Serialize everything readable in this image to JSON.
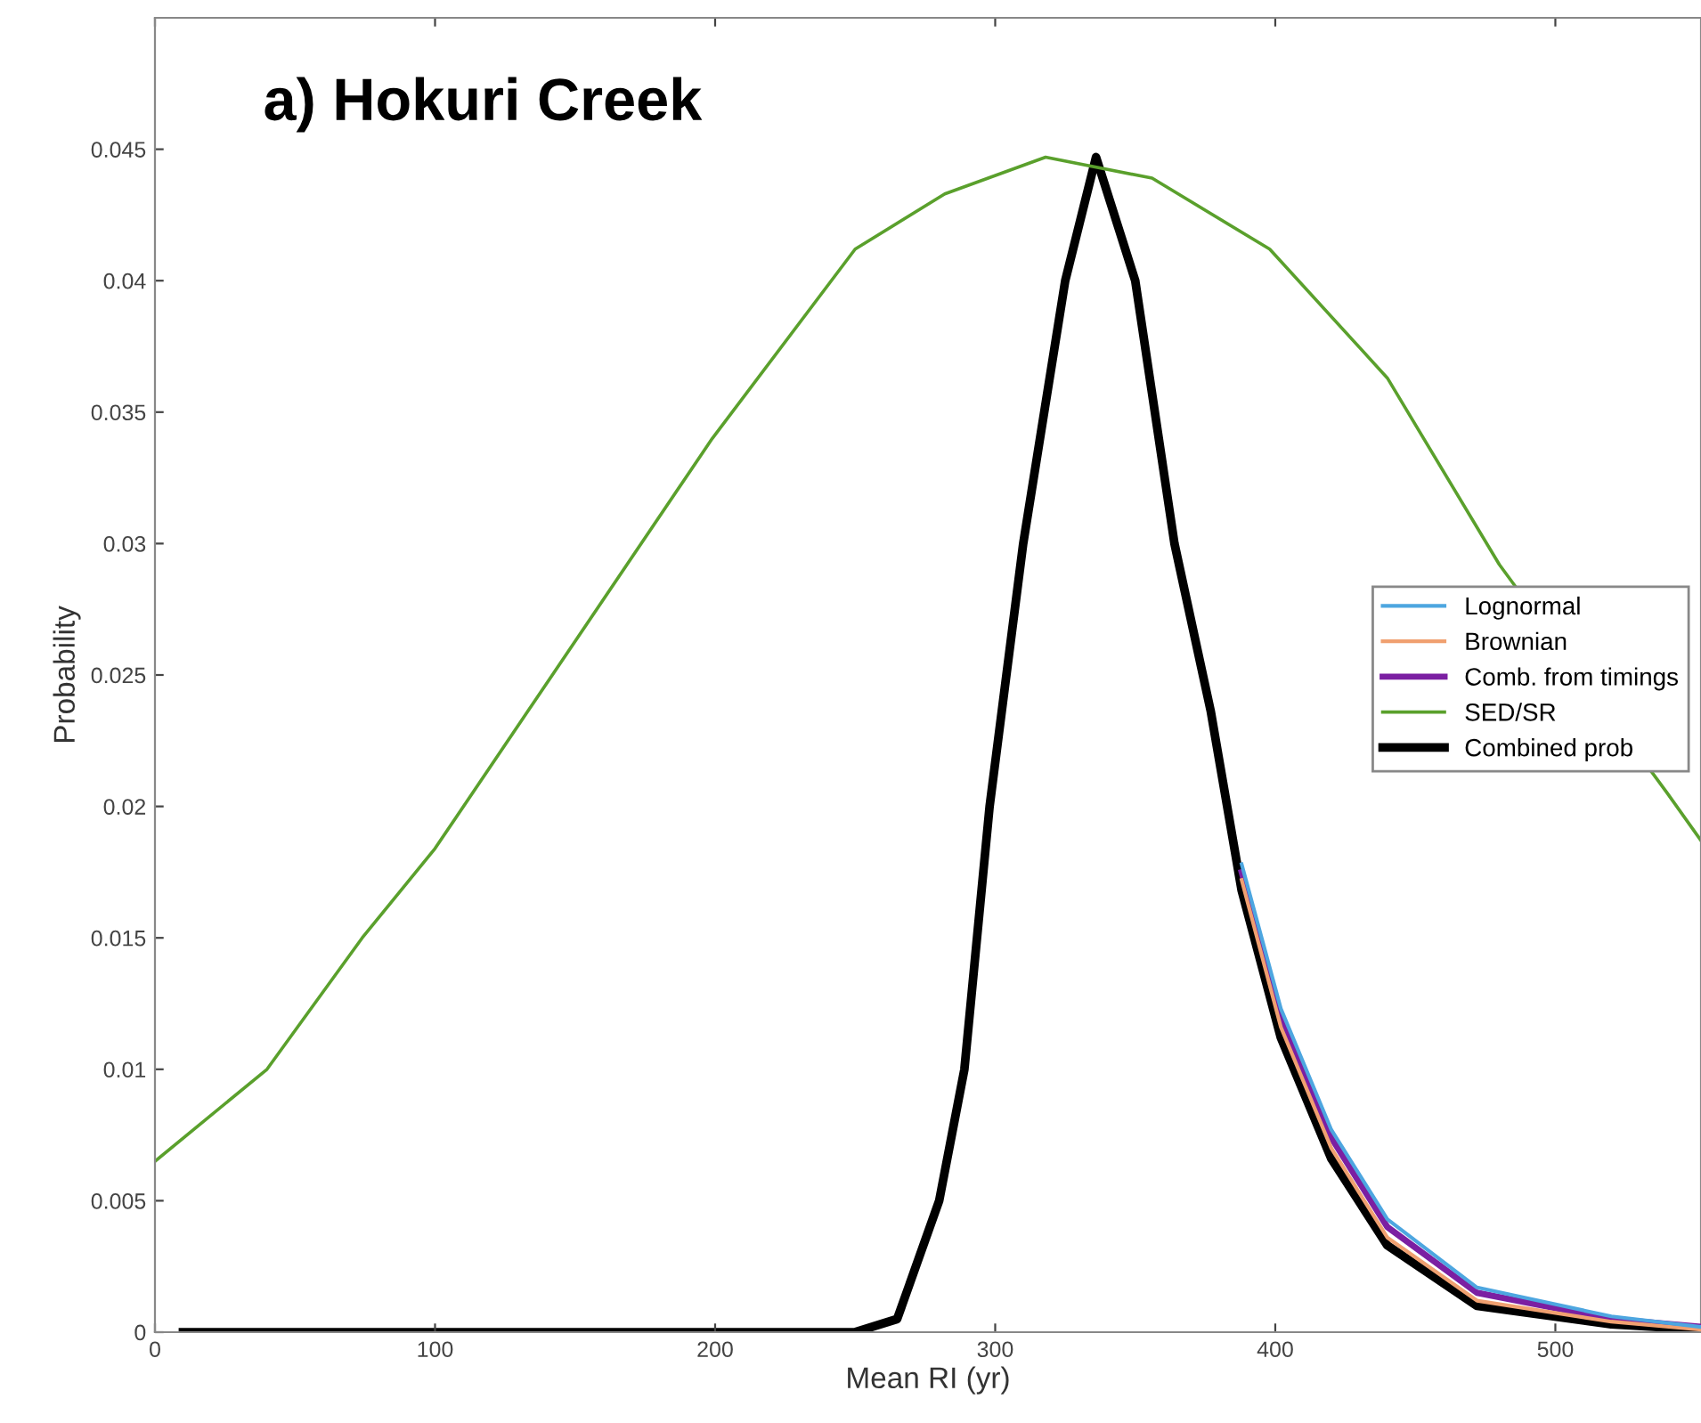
{
  "chart_data": {
    "type": "line",
    "title": "a) Hokuri Creek",
    "xlabel": "Mean RI (yr)",
    "ylabel": "Probability",
    "xlim": [
      0,
      552
    ],
    "ylim": [
      0,
      0.05
    ],
    "xticks": [
      0,
      100,
      200,
      300,
      400,
      500
    ],
    "yticks": [
      0,
      0.005,
      0.01,
      0.015,
      0.02,
      0.025,
      0.03,
      0.035,
      0.04,
      0.045
    ],
    "legend": "right",
    "series": [
      {
        "name": "Lognormal",
        "color": "#4da6e0",
        "x": [
          388,
          402,
          420,
          440,
          472,
          520,
          552
        ],
        "values": [
          0.0178,
          0.0123,
          0.0077,
          0.0043,
          0.0017,
          0.0006,
          0.0002
        ]
      },
      {
        "name": "Brownian",
        "color": "#f0a070",
        "x": [
          388,
          402,
          420,
          440,
          472,
          520,
          552
        ],
        "values": [
          0.0172,
          0.0116,
          0.007,
          0.0036,
          0.0012,
          0.0004,
          0.0001
        ]
      },
      {
        "name": "Comb. from timings",
        "color": "#7b1fa2",
        "x": [
          388,
          402,
          420,
          440,
          472,
          520,
          552
        ],
        "values": [
          0.0175,
          0.012,
          0.0074,
          0.004,
          0.0015,
          0.0005,
          0.0002
        ]
      },
      {
        "name": "SED/SR",
        "color": "#5aa02c",
        "x": [
          0,
          40,
          74,
          100,
          133,
          199,
          250,
          282,
          318,
          356,
          398,
          440,
          480,
          540,
          552
        ],
        "values": [
          0.0065,
          0.01,
          0.015,
          0.0184,
          0.0236,
          0.034,
          0.0412,
          0.0433,
          0.0447,
          0.0439,
          0.0412,
          0.0363,
          0.0292,
          0.0205,
          0.0187
        ]
      },
      {
        "name": "Combined prob",
        "color": "#000000",
        "x": [
          10,
          100,
          200,
          250,
          265,
          280,
          289,
          298,
          310,
          325,
          336,
          350,
          364,
          377,
          388,
          402,
          420,
          440,
          472,
          520,
          552
        ],
        "values": [
          0,
          0,
          0,
          0,
          0.0005,
          0.005,
          0.01,
          0.02,
          0.03,
          0.04,
          0.0447,
          0.04,
          0.03,
          0.0236,
          0.0168,
          0.0112,
          0.0066,
          0.0033,
          0.001,
          0.0003,
          0.0001
        ]
      }
    ]
  }
}
